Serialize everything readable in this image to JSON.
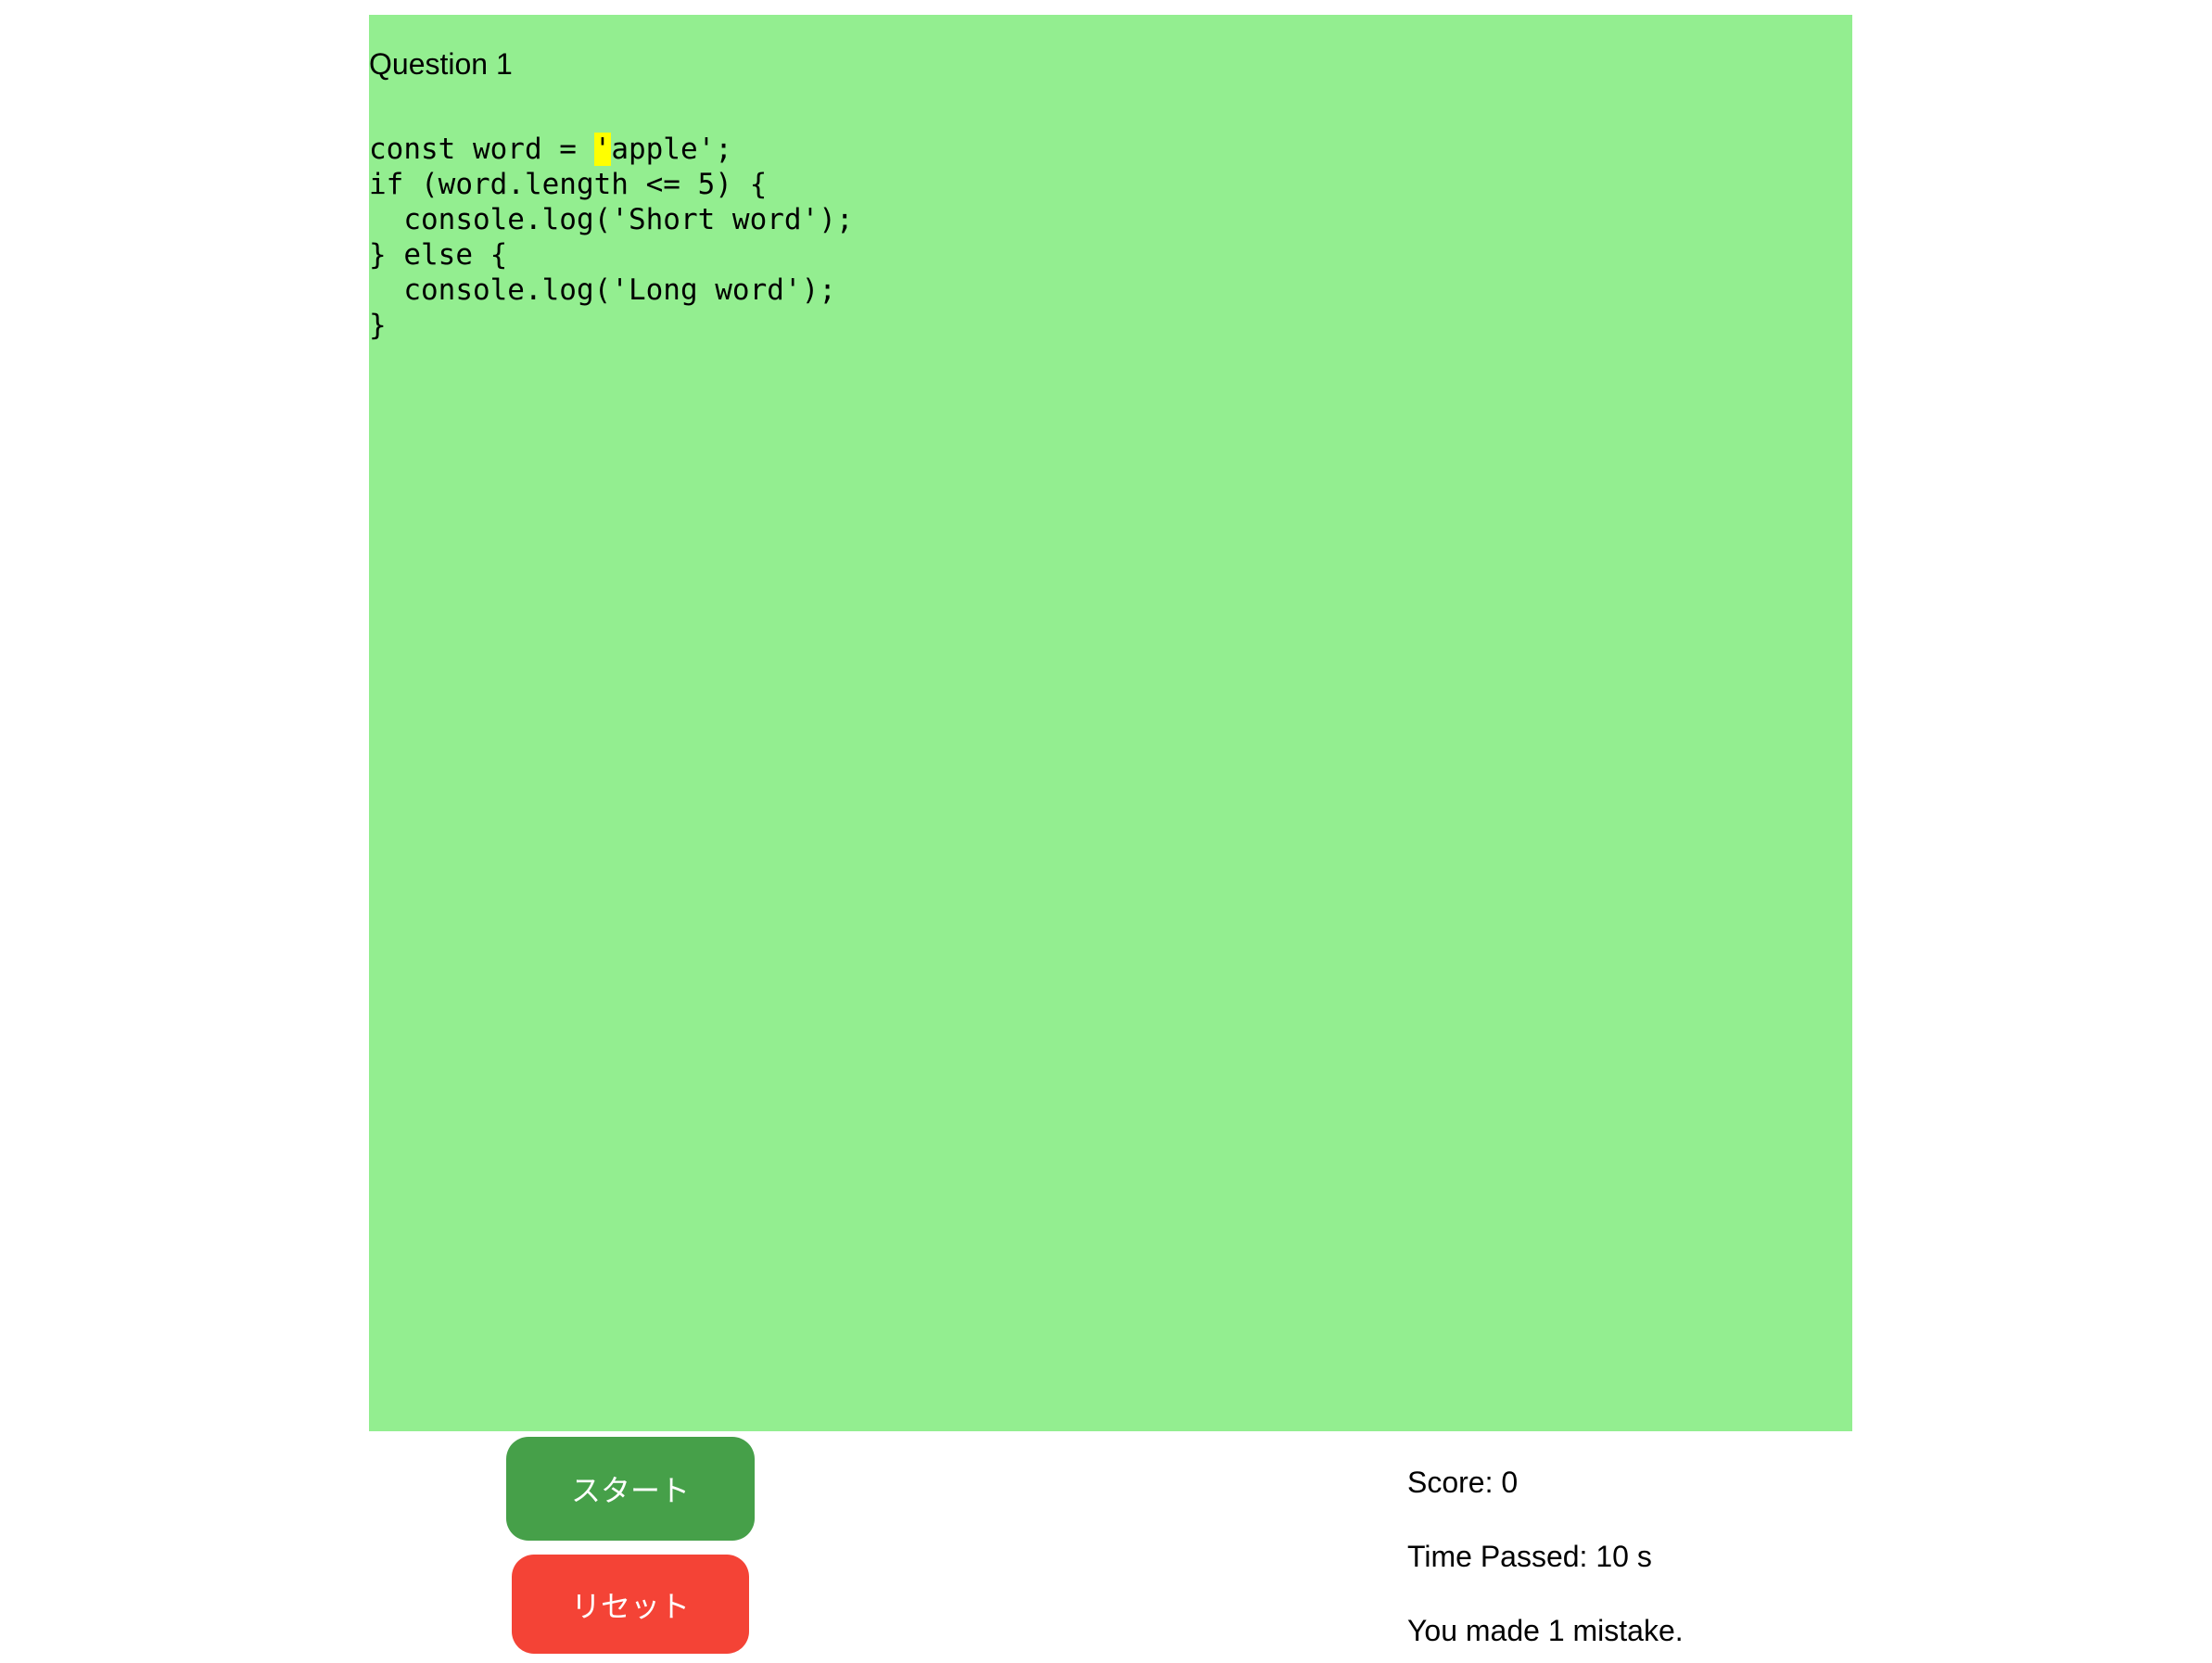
{
  "question": {
    "title": "Question 1"
  },
  "code": {
    "line1_before": "const word = ",
    "line1_highlight": "'",
    "line1_after": "apple';",
    "lines": [
      "if (word.length <= 5) {",
      "  console.log('Short word');",
      "} else {",
      "  console.log('Long word');",
      "}"
    ]
  },
  "buttons": {
    "start": "スタート",
    "reset": "リセット"
  },
  "stats": {
    "score": "Score: 0",
    "time": "Time Passed: 10 s",
    "mistakes": "You made 1 mistake."
  },
  "colors": {
    "area": "#93ee90",
    "highlight": "#ffff00",
    "start": "#46a049",
    "reset": "#f44336"
  }
}
